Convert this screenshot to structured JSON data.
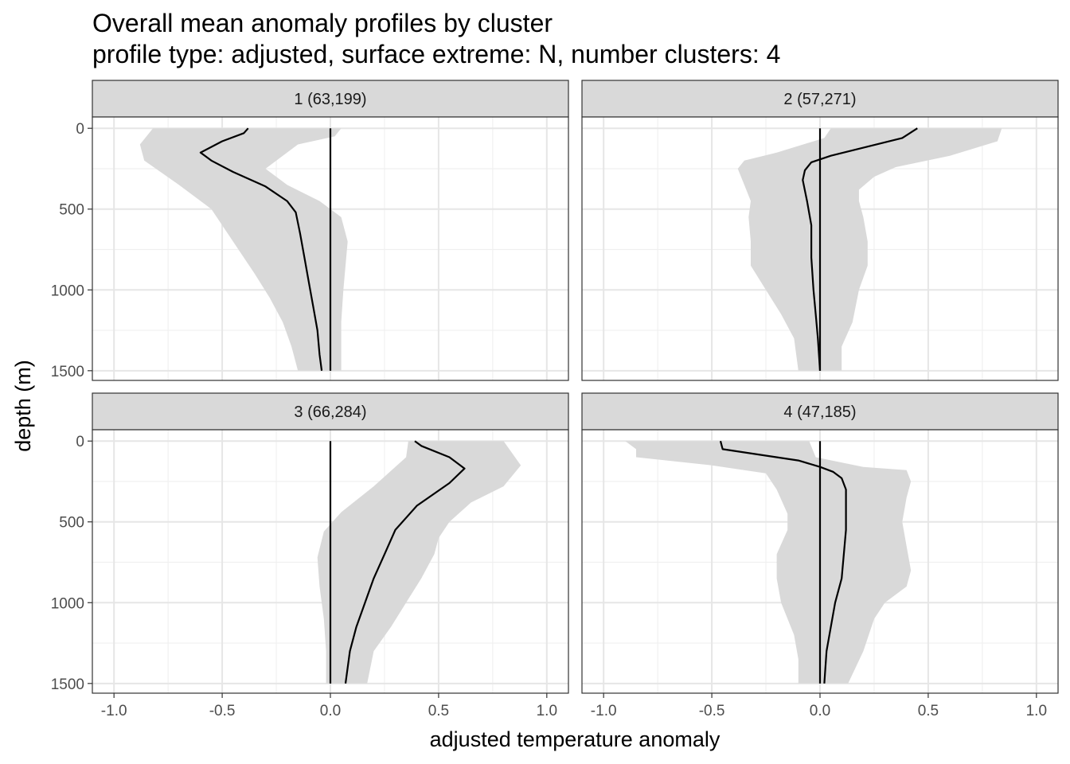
{
  "chart_data": {
    "type": "line",
    "title": "Overall mean anomaly profiles by cluster",
    "subtitle": "profile type: adjusted, surface extreme: N, number clusters: 4",
    "xlabel": "adjusted temperature anomaly",
    "ylabel": "depth (m)",
    "xlim": [
      -1.1,
      1.1
    ],
    "ylim": [
      1560,
      -70
    ],
    "y_reversed": true,
    "xticks": [
      -1.0,
      -0.5,
      0.0,
      0.5,
      1.0
    ],
    "xtick_labels": [
      "-1.0",
      "-0.5",
      "0.0",
      "0.5",
      "1.0"
    ],
    "yticks": [
      0,
      500,
      1000,
      1500
    ],
    "ytick_labels": [
      "0",
      "500",
      "1000",
      "1500"
    ],
    "grid": true,
    "reference_line_x": 0,
    "band_color": "#d9d9d9",
    "line_color": "#000000",
    "strip_color": "#d9d9d9",
    "panels": [
      {
        "label": "1 (63,199)",
        "mean": [
          [
            -0.38,
            0
          ],
          [
            -0.4,
            30
          ],
          [
            -0.5,
            80
          ],
          [
            -0.6,
            150
          ],
          [
            -0.55,
            200
          ],
          [
            -0.45,
            270
          ],
          [
            -0.3,
            360
          ],
          [
            -0.2,
            450
          ],
          [
            -0.16,
            520
          ],
          [
            -0.14,
            650
          ],
          [
            -0.12,
            800
          ],
          [
            -0.1,
            950
          ],
          [
            -0.08,
            1100
          ],
          [
            -0.06,
            1250
          ],
          [
            -0.05,
            1400
          ],
          [
            -0.04,
            1500
          ]
        ],
        "upper": [
          [
            0.05,
            0
          ],
          [
            0.02,
            50
          ],
          [
            -0.15,
            100
          ],
          [
            -0.3,
            250
          ],
          [
            -0.2,
            350
          ],
          [
            -0.05,
            450
          ],
          [
            0.05,
            550
          ],
          [
            0.08,
            700
          ],
          [
            0.07,
            850
          ],
          [
            0.06,
            1000
          ],
          [
            0.05,
            1200
          ],
          [
            0.05,
            1500
          ]
        ],
        "lower": [
          [
            -0.82,
            0
          ],
          [
            -0.85,
            50
          ],
          [
            -0.88,
            100
          ],
          [
            -0.86,
            200
          ],
          [
            -0.7,
            350
          ],
          [
            -0.55,
            500
          ],
          [
            -0.45,
            700
          ],
          [
            -0.35,
            900
          ],
          [
            -0.28,
            1050
          ],
          [
            -0.22,
            1200
          ],
          [
            -0.18,
            1350
          ],
          [
            -0.15,
            1500
          ]
        ]
      },
      {
        "label": "2 (57,271)",
        "mean": [
          [
            0.45,
            0
          ],
          [
            0.38,
            60
          ],
          [
            0.2,
            120
          ],
          [
            0.05,
            170
          ],
          [
            -0.04,
            210
          ],
          [
            -0.07,
            260
          ],
          [
            -0.08,
            320
          ],
          [
            -0.06,
            450
          ],
          [
            -0.04,
            600
          ],
          [
            -0.04,
            800
          ],
          [
            -0.03,
            1000
          ],
          [
            -0.02,
            1150
          ],
          [
            -0.01,
            1300
          ],
          [
            0,
            1500
          ]
        ],
        "upper": [
          [
            0.84,
            0
          ],
          [
            0.82,
            80
          ],
          [
            0.6,
            170
          ],
          [
            0.35,
            240
          ],
          [
            0.25,
            300
          ],
          [
            0.18,
            380
          ],
          [
            0.18,
            450
          ],
          [
            0.2,
            550
          ],
          [
            0.22,
            700
          ],
          [
            0.22,
            850
          ],
          [
            0.18,
            1000
          ],
          [
            0.15,
            1200
          ],
          [
            0.1,
            1350
          ],
          [
            0.1,
            1500
          ]
        ],
        "lower": [
          [
            0.05,
            0
          ],
          [
            0.02,
            60
          ],
          [
            -0.2,
            150
          ],
          [
            -0.35,
            200
          ],
          [
            -0.38,
            250
          ],
          [
            -0.35,
            350
          ],
          [
            -0.32,
            450
          ],
          [
            -0.33,
            550
          ],
          [
            -0.32,
            700
          ],
          [
            -0.32,
            850
          ],
          [
            -0.25,
            1000
          ],
          [
            -0.18,
            1150
          ],
          [
            -0.12,
            1300
          ],
          [
            -0.1,
            1500
          ]
        ]
      },
      {
        "label": "3 (66,284)",
        "mean": [
          [
            0.39,
            0
          ],
          [
            0.42,
            30
          ],
          [
            0.55,
            100
          ],
          [
            0.62,
            170
          ],
          [
            0.55,
            260
          ],
          [
            0.4,
            400
          ],
          [
            0.3,
            550
          ],
          [
            0.25,
            700
          ],
          [
            0.2,
            850
          ],
          [
            0.16,
            1000
          ],
          [
            0.12,
            1150
          ],
          [
            0.09,
            1300
          ],
          [
            0.07,
            1500
          ]
        ],
        "upper": [
          [
            0.8,
            0
          ],
          [
            0.88,
            150
          ],
          [
            0.8,
            280
          ],
          [
            0.65,
            380
          ],
          [
            0.55,
            500
          ],
          [
            0.5,
            600
          ],
          [
            0.48,
            700
          ],
          [
            0.42,
            850
          ],
          [
            0.35,
            1000
          ],
          [
            0.28,
            1150
          ],
          [
            0.2,
            1300
          ],
          [
            0.17,
            1500
          ]
        ],
        "lower": [
          [
            0.36,
            0
          ],
          [
            0.35,
            100
          ],
          [
            0.2,
            280
          ],
          [
            0.05,
            440
          ],
          [
            -0.03,
            560
          ],
          [
            -0.06,
            720
          ],
          [
            -0.05,
            900
          ],
          [
            -0.03,
            1100
          ],
          [
            -0.02,
            1300
          ],
          [
            -0.02,
            1500
          ]
        ]
      },
      {
        "label": "4 (47,185)",
        "mean": [
          [
            -0.46,
            0
          ],
          [
            -0.45,
            50
          ],
          [
            -0.3,
            80
          ],
          [
            -0.1,
            120
          ],
          [
            0,
            160
          ],
          [
            0.06,
            190
          ],
          [
            0.1,
            230
          ],
          [
            0.12,
            300
          ],
          [
            0.12,
            400
          ],
          [
            0.12,
            550
          ],
          [
            0.11,
            700
          ],
          [
            0.1,
            850
          ],
          [
            0.07,
            1000
          ],
          [
            0.05,
            1150
          ],
          [
            0.03,
            1300
          ],
          [
            0.02,
            1500
          ]
        ],
        "upper": [
          [
            -0.05,
            0
          ],
          [
            -0.02,
            100
          ],
          [
            0.2,
            160
          ],
          [
            0.4,
            180
          ],
          [
            0.42,
            250
          ],
          [
            0.4,
            350
          ],
          [
            0.38,
            500
          ],
          [
            0.4,
            650
          ],
          [
            0.42,
            800
          ],
          [
            0.4,
            900
          ],
          [
            0.3,
            1000
          ],
          [
            0.25,
            1100
          ],
          [
            0.2,
            1300
          ],
          [
            0.13,
            1500
          ]
        ],
        "lower": [
          [
            -0.9,
            0
          ],
          [
            -0.85,
            50
          ],
          [
            -0.85,
            100
          ],
          [
            -0.5,
            150
          ],
          [
            -0.25,
            200
          ],
          [
            -0.2,
            300
          ],
          [
            -0.15,
            450
          ],
          [
            -0.15,
            550
          ],
          [
            -0.2,
            700
          ],
          [
            -0.2,
            850
          ],
          [
            -0.18,
            1000
          ],
          [
            -0.12,
            1200
          ],
          [
            -0.1,
            1350
          ],
          [
            -0.1,
            1500
          ]
        ]
      }
    ]
  }
}
